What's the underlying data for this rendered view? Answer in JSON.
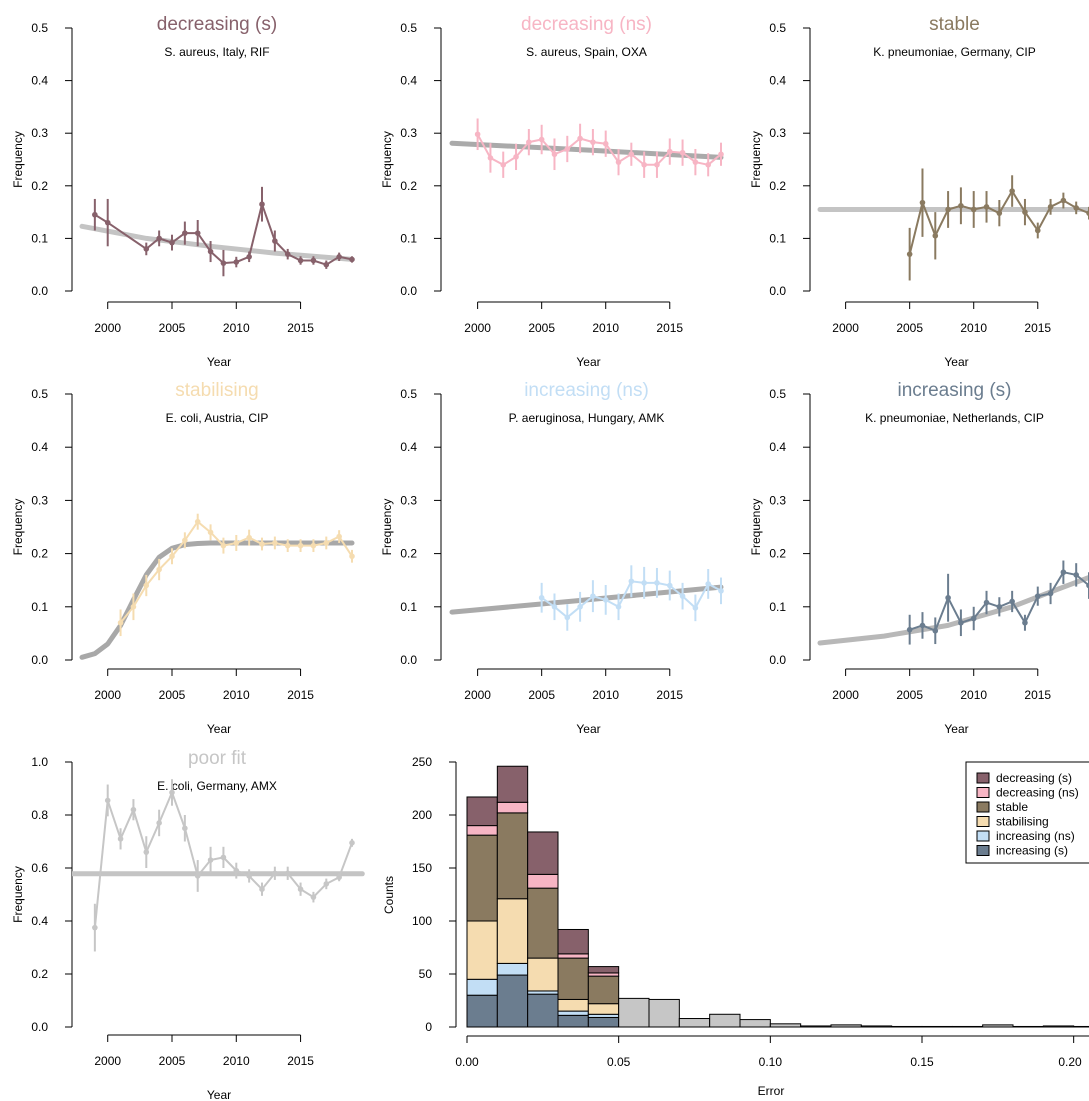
{
  "colors": {
    "decreasing_s": "#87616b",
    "decreasing_ns": "#f7b5c4",
    "stable": "#8a7a60",
    "stabilising": "#f5dcb0",
    "increasing_ns": "#c2def5",
    "increasing_s": "#6b7d8f",
    "poor_fit": "#c6c6c6",
    "fit_line": "#bcbcbc"
  },
  "chart_data": [
    {
      "type": "line",
      "panel": "decreasing-s",
      "title": "decreasing (s)",
      "subtitle": "S. aureus, Italy, RIF",
      "xlabel": "Year",
      "ylabel": "Frequency",
      "xlim": [
        1998,
        2019
      ],
      "ylim": [
        0,
        0.5
      ],
      "xticks": [
        "2000",
        "2005",
        "2010",
        "2015"
      ],
      "yticks": [
        "0.0",
        "0.1",
        "0.2",
        "0.3",
        "0.4",
        "0.5"
      ],
      "color_key": "decreasing_s",
      "x": [
        1999,
        2000,
        2003,
        2004,
        2005,
        2006,
        2007,
        2008,
        2009,
        2010,
        2011,
        2012,
        2013,
        2014,
        2015,
        2016,
        2017,
        2018,
        2019
      ],
      "y": [
        0.145,
        0.13,
        0.08,
        0.1,
        0.092,
        0.11,
        0.11,
        0.075,
        0.053,
        0.055,
        0.065,
        0.165,
        0.095,
        0.07,
        0.058,
        0.058,
        0.05,
        0.065,
        0.06
      ],
      "err": [
        0.03,
        0.045,
        0.012,
        0.015,
        0.015,
        0.022,
        0.025,
        0.02,
        0.025,
        0.01,
        0.01,
        0.033,
        0.02,
        0.01,
        0.008,
        0.008,
        0.008,
        0.008,
        0.006
      ],
      "fit": [
        [
          1998,
          0.123
        ],
        [
          2003,
          0.1
        ],
        [
          2008,
          0.085
        ],
        [
          2013,
          0.072
        ],
        [
          2019,
          0.06
        ]
      ],
      "fit_color": "#c4c4c4"
    },
    {
      "type": "line",
      "panel": "decreasing-ns",
      "title": "decreasing (ns)",
      "subtitle": "S. aureus, Spain, OXA",
      "xlabel": "Year",
      "ylabel": "Frequency",
      "xlim": [
        1998,
        2019
      ],
      "ylim": [
        0,
        0.5
      ],
      "xticks": [
        "2000",
        "2005",
        "2010",
        "2015"
      ],
      "yticks": [
        "0.0",
        "0.1",
        "0.2",
        "0.3",
        "0.4",
        "0.5"
      ],
      "color_key": "decreasing_ns",
      "x": [
        2000,
        2001,
        2002,
        2003,
        2004,
        2005,
        2006,
        2007,
        2008,
        2009,
        2010,
        2011,
        2012,
        2013,
        2014,
        2015,
        2016,
        2017,
        2018,
        2019
      ],
      "y": [
        0.298,
        0.253,
        0.24,
        0.255,
        0.283,
        0.288,
        0.26,
        0.27,
        0.29,
        0.283,
        0.28,
        0.245,
        0.26,
        0.24,
        0.24,
        0.265,
        0.263,
        0.245,
        0.24,
        0.26
      ],
      "err": [
        0.03,
        0.028,
        0.025,
        0.025,
        0.025,
        0.028,
        0.03,
        0.025,
        0.028,
        0.025,
        0.025,
        0.025,
        0.022,
        0.025,
        0.025,
        0.025,
        0.025,
        0.025,
        0.022,
        0.022
      ],
      "fit": [
        [
          1998,
          0.281
        ],
        [
          2008.5,
          0.268
        ],
        [
          2019,
          0.254
        ]
      ],
      "fit_color": "#aaaaaa"
    },
    {
      "type": "line",
      "panel": "stable",
      "title": "stable",
      "subtitle": "K. pneumoniae, Germany, CIP",
      "xlabel": "Year",
      "ylabel": "Frequency",
      "xlim": [
        1998,
        2019
      ],
      "ylim": [
        0,
        0.5
      ],
      "xticks": [
        "2000",
        "2005",
        "2010",
        "2015"
      ],
      "yticks": [
        "0.0",
        "0.1",
        "0.2",
        "0.3",
        "0.4",
        "0.5"
      ],
      "color_key": "stable",
      "x": [
        2005,
        2006,
        2007,
        2008,
        2009,
        2010,
        2011,
        2012,
        2013,
        2014,
        2015,
        2016,
        2017,
        2018,
        2019
      ],
      "y": [
        0.07,
        0.168,
        0.105,
        0.155,
        0.162,
        0.155,
        0.16,
        0.148,
        0.19,
        0.15,
        0.115,
        0.16,
        0.172,
        0.158,
        0.148
      ],
      "err": [
        0.05,
        0.065,
        0.045,
        0.035,
        0.035,
        0.035,
        0.03,
        0.025,
        0.03,
        0.025,
        0.015,
        0.015,
        0.015,
        0.012,
        0.012
      ],
      "fit": [
        [
          1998,
          0.155
        ],
        [
          2019,
          0.155
        ]
      ],
      "fit_color": "#c4c4c4"
    },
    {
      "type": "line",
      "panel": "stabilising",
      "title": "stabilising",
      "subtitle": "E. coli, Austria, CIP",
      "xlabel": "Year",
      "ylabel": "Frequency",
      "xlim": [
        1998,
        2019
      ],
      "ylim": [
        0,
        0.5
      ],
      "xticks": [
        "2000",
        "2005",
        "2010",
        "2015"
      ],
      "yticks": [
        "0.0",
        "0.1",
        "0.2",
        "0.3",
        "0.4",
        "0.5"
      ],
      "color_key": "stabilising",
      "x": [
        2001,
        2002,
        2003,
        2004,
        2005,
        2006,
        2007,
        2008,
        2009,
        2010,
        2011,
        2012,
        2013,
        2014,
        2015,
        2016,
        2017,
        2018,
        2019
      ],
      "y": [
        0.07,
        0.1,
        0.14,
        0.17,
        0.195,
        0.225,
        0.26,
        0.24,
        0.215,
        0.22,
        0.23,
        0.218,
        0.22,
        0.215,
        0.215,
        0.215,
        0.22,
        0.232,
        0.195
      ],
      "err": [
        0.025,
        0.025,
        0.02,
        0.02,
        0.015,
        0.015,
        0.015,
        0.015,
        0.015,
        0.015,
        0.015,
        0.012,
        0.012,
        0.012,
        0.012,
        0.012,
        0.012,
        0.012,
        0.012
      ],
      "fit": [
        [
          1998,
          0.005
        ],
        [
          1999,
          0.012
        ],
        [
          2000,
          0.03
        ],
        [
          2001,
          0.065
        ],
        [
          2002,
          0.113
        ],
        [
          2003,
          0.16
        ],
        [
          2004,
          0.193
        ],
        [
          2005,
          0.21
        ],
        [
          2006,
          0.217
        ],
        [
          2007,
          0.219
        ],
        [
          2008,
          0.22
        ],
        [
          2019,
          0.22
        ]
      ],
      "fit_color": "#a8a8a8"
    },
    {
      "type": "line",
      "panel": "increasing-ns",
      "title": "increasing (ns)",
      "subtitle": "P. aeruginosa, Hungary, AMK",
      "xlabel": "Year",
      "ylabel": "Frequency",
      "xlim": [
        1998,
        2019
      ],
      "ylim": [
        0,
        0.5
      ],
      "xticks": [
        "2000",
        "2005",
        "2010",
        "2015"
      ],
      "yticks": [
        "0.0",
        "0.1",
        "0.2",
        "0.3",
        "0.4",
        "0.5"
      ],
      "color_key": "increasing_ns",
      "x": [
        2005,
        2006,
        2007,
        2008,
        2009,
        2010,
        2011,
        2012,
        2013,
        2014,
        2015,
        2016,
        2017,
        2018,
        2019
      ],
      "y": [
        0.117,
        0.1,
        0.08,
        0.1,
        0.12,
        0.113,
        0.1,
        0.148,
        0.145,
        0.145,
        0.14,
        0.12,
        0.098,
        0.143,
        0.13
      ],
      "err": [
        0.028,
        0.025,
        0.025,
        0.028,
        0.03,
        0.028,
        0.025,
        0.03,
        0.03,
        0.028,
        0.028,
        0.025,
        0.025,
        0.028,
        0.025
      ],
      "fit": [
        [
          1998,
          0.09
        ],
        [
          2008.5,
          0.113
        ],
        [
          2019,
          0.137
        ]
      ],
      "fit_color": "#aaaaaa"
    },
    {
      "type": "line",
      "panel": "increasing-s",
      "title": "increasing (s)",
      "subtitle": "K. pneumoniae, Netherlands, CIP",
      "xlabel": "Year",
      "ylabel": "Frequency",
      "xlim": [
        1998,
        2019
      ],
      "ylim": [
        0,
        0.5
      ],
      "xticks": [
        "2000",
        "2005",
        "2010",
        "2015"
      ],
      "yticks": [
        "0.0",
        "0.1",
        "0.2",
        "0.3",
        "0.4",
        "0.5"
      ],
      "color_key": "increasing_s",
      "x": [
        2005,
        2006,
        2007,
        2008,
        2009,
        2010,
        2011,
        2012,
        2013,
        2014,
        2015,
        2016,
        2017,
        2018,
        2019
      ],
      "y": [
        0.057,
        0.065,
        0.055,
        0.117,
        0.07,
        0.078,
        0.108,
        0.1,
        0.11,
        0.07,
        0.12,
        0.125,
        0.165,
        0.16,
        0.14
      ],
      "err": [
        0.028,
        0.025,
        0.025,
        0.045,
        0.025,
        0.022,
        0.022,
        0.018,
        0.02,
        0.015,
        0.018,
        0.02,
        0.022,
        0.022,
        0.025
      ],
      "fit": [
        [
          1998,
          0.032
        ],
        [
          2003,
          0.045
        ],
        [
          2008,
          0.065
        ],
        [
          2013,
          0.1
        ],
        [
          2016,
          0.128
        ],
        [
          2019,
          0.155
        ]
      ],
      "fit_color": "#b8b8b8"
    },
    {
      "type": "line",
      "panel": "poor-fit",
      "title": "poor fit",
      "subtitle": "E. coli, Germany, AMX",
      "xlabel": "Year",
      "ylabel": "Frequency",
      "xlim": [
        1998,
        2019
      ],
      "ylim": [
        0,
        1.0
      ],
      "xticks": [
        "2000",
        "2005",
        "2010",
        "2015"
      ],
      "yticks": [
        "0.0",
        "0.2",
        "0.4",
        "0.6",
        "0.8",
        "1.0"
      ],
      "color_key": "poor_fit",
      "x": [
        1999,
        2000,
        2001,
        2002,
        2003,
        2004,
        2005,
        2006,
        2007,
        2008,
        2009,
        2010,
        2011,
        2012,
        2013,
        2014,
        2015,
        2016,
        2017,
        2018,
        2019
      ],
      "y": [
        0.375,
        0.855,
        0.71,
        0.82,
        0.66,
        0.77,
        0.885,
        0.75,
        0.57,
        0.63,
        0.64,
        0.59,
        0.57,
        0.52,
        0.58,
        0.58,
        0.52,
        0.49,
        0.54,
        0.565,
        0.695
      ],
      "err": [
        0.09,
        0.06,
        0.04,
        0.04,
        0.06,
        0.05,
        0.05,
        0.05,
        0.06,
        0.05,
        0.04,
        0.03,
        0.025,
        0.025,
        0.025,
        0.025,
        0.025,
        0.02,
        0.02,
        0.015,
        0.015
      ],
      "fit": [
        [
          1997.2,
          0.578
        ],
        [
          2019.8,
          0.578
        ]
      ],
      "fit_color": "#c4c4c4"
    },
    {
      "type": "bar",
      "panel": "error-histogram",
      "stacked": true,
      "xlabel": "Error",
      "ylabel": "Counts",
      "xlim": [
        0,
        0.205
      ],
      "ylim": [
        0,
        250
      ],
      "xticks": [
        "0.00",
        "0.05",
        "0.10",
        "0.15",
        "0.20"
      ],
      "yticks": [
        "0",
        "50",
        "100",
        "150",
        "200",
        "250"
      ],
      "bin_width": 0.01,
      "bin_starts": [
        0.0,
        0.01,
        0.02,
        0.03,
        0.04
      ],
      "series": [
        {
          "name": "increasing (s)",
          "color_key": "increasing_s",
          "values": [
            30,
            49,
            31,
            11,
            9
          ]
        },
        {
          "name": "increasing (ns)",
          "color_key": "increasing_ns",
          "values": [
            15,
            11,
            3,
            4,
            3
          ]
        },
        {
          "name": "stabilising",
          "color_key": "stabilising",
          "values": [
            55,
            61,
            31,
            11,
            10
          ]
        },
        {
          "name": "stable",
          "color_key": "stable",
          "values": [
            81,
            81,
            66,
            39,
            26
          ]
        },
        {
          "name": "decreasing (ns)",
          "color_key": "decreasing_ns",
          "values": [
            9,
            10,
            13,
            4,
            3
          ]
        },
        {
          "name": "decreasing (s)",
          "color_key": "decreasing_s",
          "values": [
            27,
            34,
            40,
            23,
            6
          ]
        }
      ],
      "poor_fit_bins": [
        {
          "x": 0.05,
          "value": 27
        },
        {
          "x": 0.06,
          "value": 26
        },
        {
          "x": 0.07,
          "value": 8
        },
        {
          "x": 0.08,
          "value": 12
        },
        {
          "x": 0.09,
          "value": 7
        },
        {
          "x": 0.1,
          "value": 3
        },
        {
          "x": 0.11,
          "value": 1
        },
        {
          "x": 0.12,
          "value": 2
        },
        {
          "x": 0.13,
          "value": 1
        },
        {
          "x": 0.14,
          "value": 0.5
        },
        {
          "x": 0.15,
          "value": 0.5
        },
        {
          "x": 0.16,
          "value": 0.5
        },
        {
          "x": 0.17,
          "value": 2
        },
        {
          "x": 0.18,
          "value": 0.5
        },
        {
          "x": 0.19,
          "value": 1
        },
        {
          "x": 0.2,
          "value": 0.5
        }
      ],
      "legend": {
        "placement": "top-right",
        "entries": [
          {
            "label": "decreasing (s)",
            "color_key": "decreasing_s"
          },
          {
            "label": "decreasing (ns)",
            "color_key": "decreasing_ns"
          },
          {
            "label": "stable",
            "color_key": "stable"
          },
          {
            "label": "stabilising",
            "color_key": "stabilising"
          },
          {
            "label": "increasing (ns)",
            "color_key": "increasing_ns"
          },
          {
            "label": "increasing (s)",
            "color_key": "increasing_s"
          }
        ]
      }
    }
  ]
}
